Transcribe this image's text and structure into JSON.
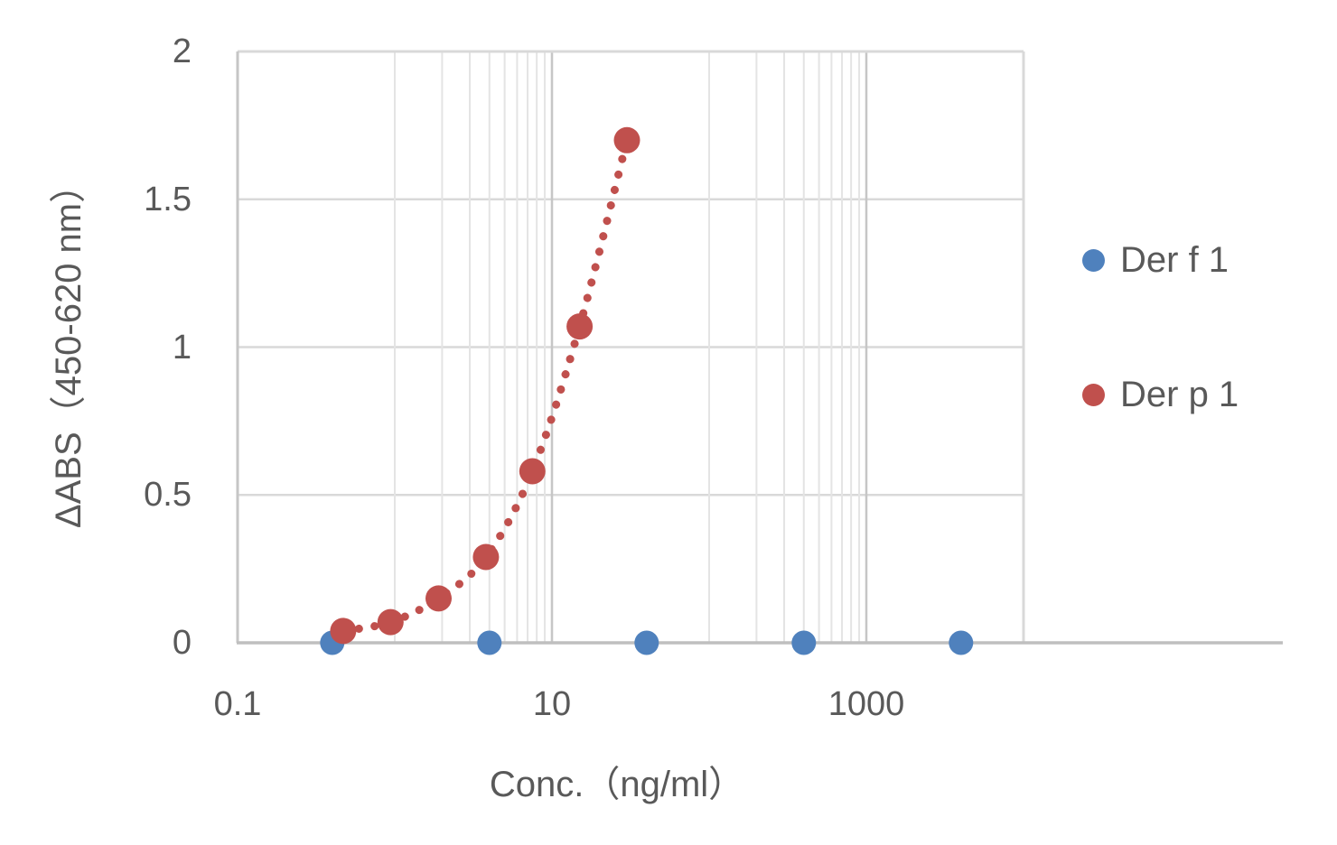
{
  "chart_data": {
    "type": "scatter",
    "title": "",
    "xlabel": "Conc.（ng/ml）",
    "ylabel": "ΔABS（450-620 nm）",
    "x_axis": {
      "scale": "log",
      "min": 0.1,
      "max": 10000,
      "tick_values": [
        0.1,
        10,
        1000
      ],
      "tick_labels": [
        "0.1",
        "10",
        "1000"
      ],
      "minor_gridlines": [
        1,
        2,
        3,
        4,
        5,
        6,
        7,
        8,
        9,
        100,
        200,
        300,
        400,
        500,
        600,
        700,
        800,
        900
      ],
      "major_gridlines": [
        10,
        1000
      ],
      "grid": true
    },
    "y_axis": {
      "scale": "linear",
      "min": 0,
      "max": 2,
      "tick_values": [
        0,
        0.5,
        1,
        1.5,
        2
      ],
      "tick_labels": [
        "0",
        "0.5",
        "1",
        "1.5",
        "2"
      ],
      "gridline_values": [
        0.5,
        1,
        1.5
      ],
      "grid": true
    },
    "series": [
      {
        "name": "Der f 1",
        "color": "#4F81BD",
        "marker": "circle",
        "line": "none",
        "x": [
          0.4,
          4,
          40,
          400,
          4000
        ],
        "y": [
          0,
          0,
          0,
          0,
          0
        ]
      },
      {
        "name": "Der p 1",
        "color": "#C0504D",
        "marker": "circle",
        "line": "dotted",
        "x": [
          0.47,
          0.94,
          1.9,
          3.8,
          7.5,
          15,
          30
        ],
        "y": [
          0.04,
          0.07,
          0.15,
          0.29,
          0.58,
          1.07,
          1.7
        ]
      }
    ],
    "legend": {
      "position": "right",
      "entries": [
        "Der f 1",
        "Der p 1"
      ]
    }
  },
  "colors": {
    "text": "#595959",
    "background": "#FFFFFF",
    "grid_horizontal": "#D9D9D9",
    "grid_minor": "#E4E4E4",
    "grid_major": "#C6C6C6",
    "border_light": "#D9D9D9",
    "axis_line": "#BFBFBF"
  }
}
